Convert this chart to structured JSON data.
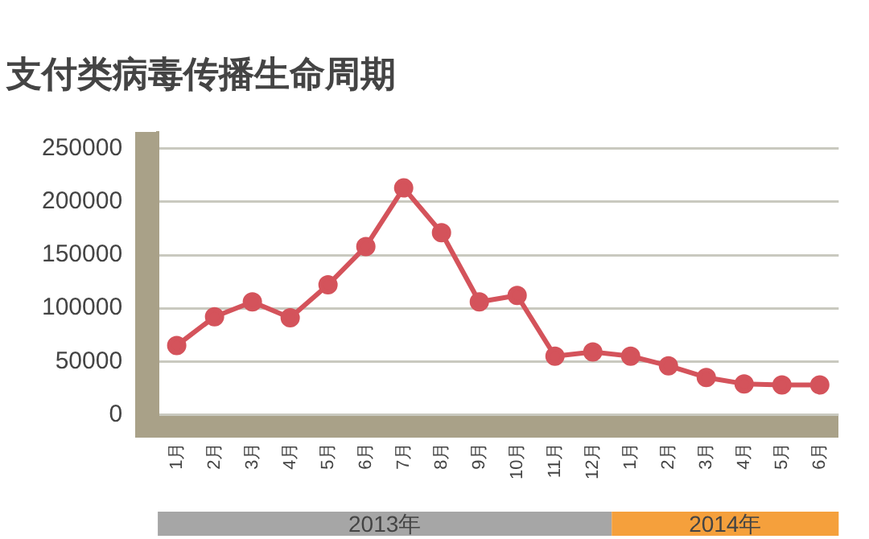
{
  "chart_data": {
    "type": "line",
    "title": "支付类病毒传播生命周期",
    "categories": [
      "1月",
      "2月",
      "3月",
      "4月",
      "5月",
      "6月",
      "7月",
      "8月",
      "9月",
      "10月",
      "11月",
      "12月",
      "1月",
      "2月",
      "3月",
      "4月",
      "5月",
      "6月"
    ],
    "series": [
      {
        "color": "#d4535b",
        "values": [
          65000,
          92000,
          106000,
          91000,
          122000,
          158000,
          213000,
          171000,
          106000,
          112000,
          55000,
          59000,
          55000,
          46000,
          35000,
          29000,
          28000,
          28000
        ]
      }
    ],
    "ylim": [
      0,
      265000
    ],
    "yticks": [
      0,
      50000,
      100000,
      150000,
      200000,
      250000
    ],
    "grid": "y",
    "legend": false,
    "marker": "circle",
    "line_style": "solid",
    "annotations": [
      "2013年",
      "2014年"
    ]
  }
}
